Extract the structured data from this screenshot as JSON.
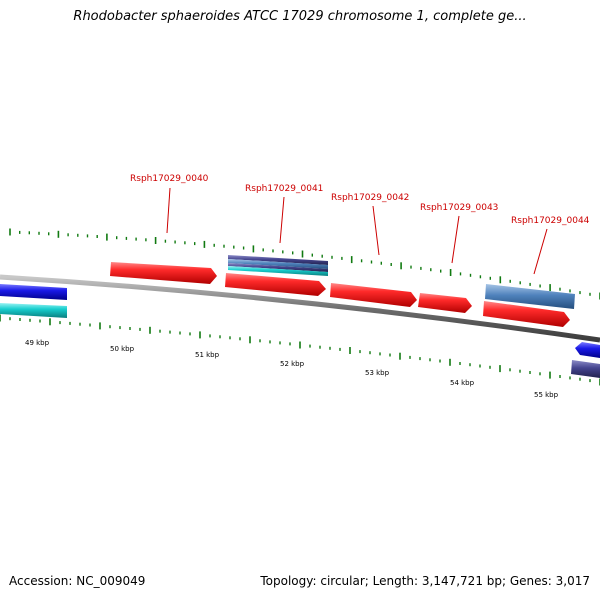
{
  "title": "Rhodobacter sphaeroides ATCC 17029 chromosome 1, complete ge...",
  "footer": {
    "accession": "Accession: NC_009049",
    "summary": "Topology: circular; Length: 3,147,721 bp; Genes: 3,017"
  },
  "colors": {
    "gene_red": "#e8141a",
    "gene_blue": "#1a1ae0",
    "gene_cyan": "#10c8c8",
    "gene_steelblue": "#4d7fb8",
    "gene_navy": "#3c3c8a",
    "backbone": "#7a7a7a",
    "tick_green": "#117a11",
    "label_red": "#cc0000"
  },
  "scale": {
    "unit": "kbp",
    "labels": [
      "49 kbp",
      "50 kbp",
      "51 kbp",
      "52 kbp",
      "53 kbp",
      "54 kbp",
      "55 kbp"
    ]
  },
  "genes": [
    {
      "id": "Rsph17029_0040",
      "label": "Rsph17029_0040",
      "color": "red",
      "strand": "+"
    },
    {
      "id": "Rsph17029_0041",
      "label": "Rsph17029_0041",
      "color": "red",
      "strand": "+"
    },
    {
      "id": "Rsph17029_0042",
      "label": "Rsph17029_0042",
      "color": "red",
      "strand": "+"
    },
    {
      "id": "Rsph17029_0043",
      "label": "Rsph17029_0043",
      "color": "red",
      "strand": "+"
    },
    {
      "id": "Rsph17029_0044",
      "label": "Rsph17029_0044",
      "color": "red",
      "strand": "+"
    }
  ]
}
